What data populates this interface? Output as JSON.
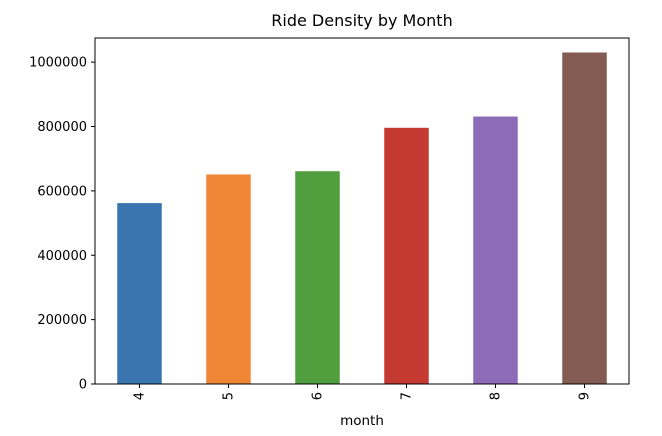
{
  "chart_data": {
    "type": "bar",
    "title": "Ride Density by Month",
    "xlabel": "month",
    "ylabel": "",
    "categories": [
      "4",
      "5",
      "6",
      "7",
      "8",
      "9"
    ],
    "values": [
      562000,
      651000,
      661000,
      796000,
      831000,
      1030000
    ],
    "colors": [
      "#3a75b0",
      "#ef8636",
      "#509e3e",
      "#c43932",
      "#8d6bb8",
      "#845b53"
    ],
    "ylim": [
      0,
      1075000
    ],
    "yticks": [
      0,
      200000,
      400000,
      600000,
      800000,
      1000000
    ],
    "ytick_labels": [
      "0",
      "200000",
      "400000",
      "600000",
      "800000",
      "1000000"
    ],
    "grid": false,
    "legend": "none"
  }
}
